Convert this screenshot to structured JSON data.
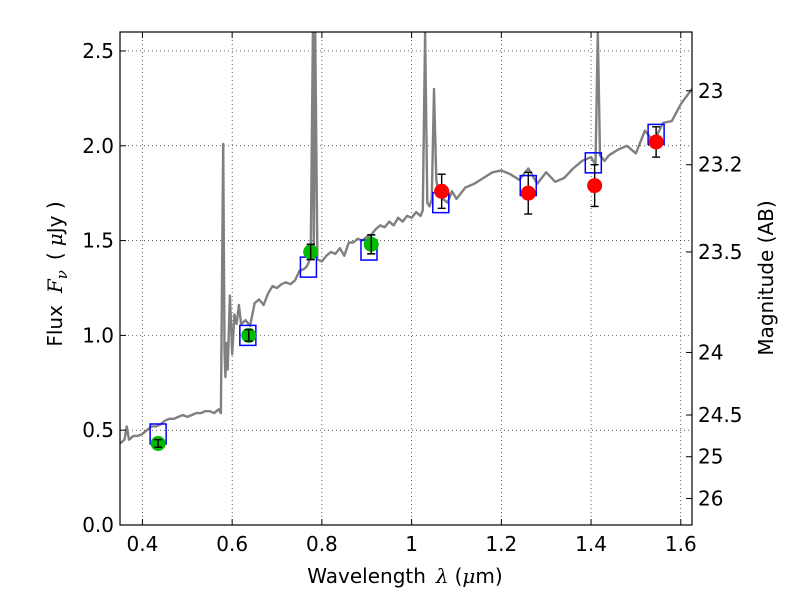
{
  "chart_data": {
    "type": "line",
    "xlabel": {
      "text": "Wavelength",
      "symbol": "λ",
      "unit_open": "(",
      "unit_mu": "μ",
      "unit_rest": "m)"
    },
    "ylabel": {
      "text": "Flux",
      "symbol": "F",
      "subscript": "ν",
      "unit_open": "(",
      "unit_mu": "μ",
      "unit_rest": "Jy )"
    },
    "right_ylabel": "Magnitude (AB)",
    "xlim": [
      0.35,
      1.625
    ],
    "ylim": [
      0.0,
      2.6
    ],
    "x_ticks": [
      0.4,
      0.6,
      0.8,
      1.0,
      1.2,
      1.4,
      1.6
    ],
    "x_tick_labels": [
      "0.4",
      "0.6",
      "0.8",
      "1",
      "1.2",
      "1.4",
      "1.6"
    ],
    "y_ticks": [
      0.0,
      0.5,
      1.0,
      1.5,
      2.0,
      2.5
    ],
    "y_tick_labels": [
      "0.0",
      "0.5",
      "1.0",
      "1.5",
      "2.0",
      "2.5"
    ],
    "right_ticks": [
      {
        "label": "23",
        "flux": 2.29
      },
      {
        "label": "23.2",
        "flux": 1.9
      },
      {
        "label": "23.5",
        "flux": 1.44
      },
      {
        "label": "24",
        "flux": 0.91
      },
      {
        "label": "24.5",
        "flux": 0.58
      },
      {
        "label": "25",
        "flux": 0.36
      },
      {
        "label": "26",
        "flux": 0.14
      }
    ],
    "grid": true,
    "colors": {
      "sed": "#808080",
      "model_box": "#0000ff",
      "optical_point": "#00bb00",
      "nir_point": "#ff0000",
      "errorbar": "#000000"
    },
    "series": [
      {
        "kind": "sed",
        "x": [
          0.35,
          0.36,
          0.365,
          0.37,
          0.38,
          0.39,
          0.4,
          0.41,
          0.42,
          0.43,
          0.44,
          0.45,
          0.46,
          0.47,
          0.48,
          0.49,
          0.5,
          0.51,
          0.52,
          0.53,
          0.54,
          0.55,
          0.56,
          0.57,
          0.575,
          0.58,
          0.583,
          0.585,
          0.588,
          0.59,
          0.595,
          0.6,
          0.605,
          0.61,
          0.615,
          0.62,
          0.63,
          0.64,
          0.65,
          0.66,
          0.67,
          0.68,
          0.69,
          0.7,
          0.71,
          0.72,
          0.73,
          0.74,
          0.75,
          0.76,
          0.765,
          0.77,
          0.775,
          0.78,
          0.782,
          0.785,
          0.79,
          0.8,
          0.81,
          0.82,
          0.83,
          0.84,
          0.85,
          0.86,
          0.87,
          0.88,
          0.89,
          0.9,
          0.91,
          0.92,
          0.93,
          0.94,
          0.95,
          0.96,
          0.97,
          0.98,
          0.99,
          1.0,
          1.01,
          1.02,
          1.025,
          1.03,
          1.035,
          1.04,
          1.045,
          1.05,
          1.055,
          1.06,
          1.07,
          1.08,
          1.09,
          1.1,
          1.12,
          1.14,
          1.16,
          1.18,
          1.2,
          1.22,
          1.24,
          1.26,
          1.28,
          1.3,
          1.32,
          1.34,
          1.36,
          1.38,
          1.4,
          1.41,
          1.415,
          1.42,
          1.43,
          1.44,
          1.46,
          1.48,
          1.5,
          1.52,
          1.54,
          1.56,
          1.58,
          1.6,
          1.625
        ],
        "y": [
          0.43,
          0.45,
          0.52,
          0.45,
          0.47,
          0.47,
          0.48,
          0.5,
          0.52,
          0.52,
          0.53,
          0.55,
          0.56,
          0.56,
          0.57,
          0.58,
          0.57,
          0.58,
          0.59,
          0.59,
          0.6,
          0.6,
          0.59,
          0.61,
          0.59,
          2.01,
          0.92,
          0.78,
          0.96,
          0.82,
          1.21,
          0.9,
          1.11,
          1.06,
          1.16,
          1.06,
          1.08,
          1.05,
          1.17,
          1.19,
          1.16,
          1.22,
          1.26,
          1.25,
          1.27,
          1.28,
          1.27,
          1.29,
          1.34,
          1.35,
          1.36,
          1.38,
          1.42,
          2.6,
          1.45,
          2.6,
          1.4,
          1.39,
          1.42,
          1.44,
          1.43,
          1.46,
          1.42,
          1.49,
          1.49,
          1.51,
          1.5,
          1.52,
          1.53,
          1.56,
          1.58,
          1.57,
          1.6,
          1.58,
          1.62,
          1.6,
          1.63,
          1.62,
          1.65,
          1.63,
          1.66,
          2.6,
          1.7,
          1.68,
          1.72,
          2.3,
          1.82,
          1.75,
          1.72,
          1.7,
          1.76,
          1.72,
          1.78,
          1.8,
          1.83,
          1.86,
          1.87,
          1.85,
          1.82,
          1.88,
          1.8,
          1.86,
          1.81,
          1.83,
          1.88,
          1.92,
          1.94,
          1.9,
          2.6,
          1.95,
          1.92,
          1.95,
          1.98,
          2.0,
          1.96,
          2.08,
          2.02,
          2.12,
          2.13,
          2.22,
          2.3
        ]
      },
      {
        "kind": "model_boxes",
        "x": [
          0.435,
          0.635,
          0.77,
          0.905,
          1.065,
          1.26,
          1.405,
          1.545
        ],
        "y": [
          0.48,
          1.0,
          1.36,
          1.45,
          1.7,
          1.79,
          1.91,
          2.06
        ]
      },
      {
        "kind": "optical_photometry",
        "x": [
          0.435,
          0.637,
          0.775,
          0.91
        ],
        "y": [
          0.43,
          1.0,
          1.44,
          1.48
        ],
        "err": [
          0.02,
          0.03,
          0.04,
          0.05
        ]
      },
      {
        "kind": "nir_photometry",
        "x": [
          1.067,
          1.26,
          1.408,
          1.545
        ],
        "y": [
          1.76,
          1.75,
          1.79,
          2.02
        ],
        "err": [
          0.09,
          0.11,
          0.11,
          0.08
        ]
      }
    ]
  }
}
